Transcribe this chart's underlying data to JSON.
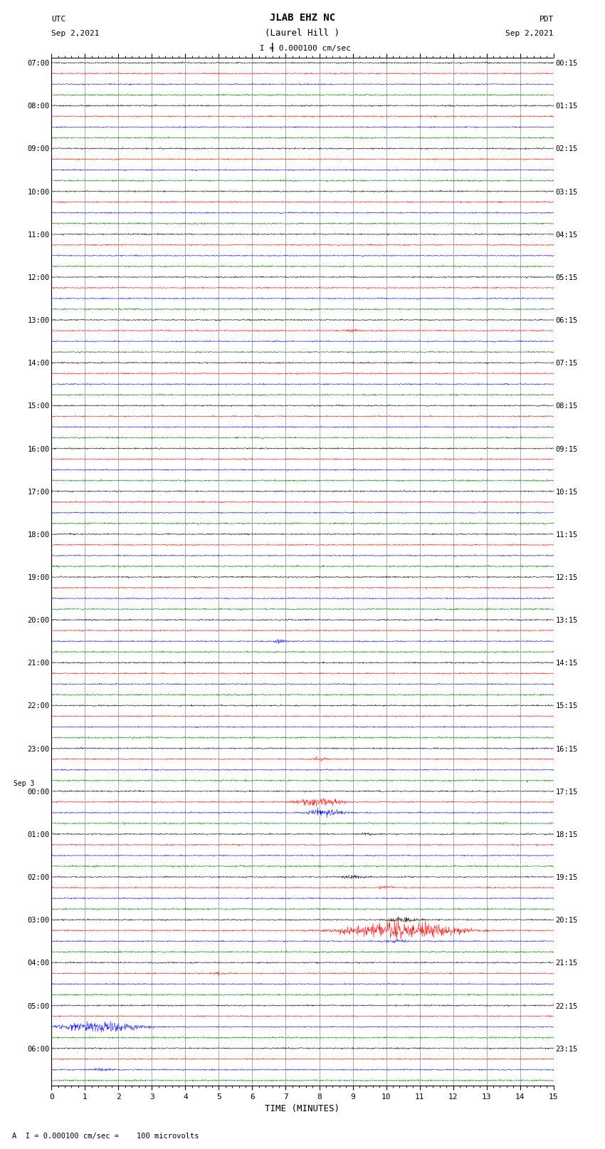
{
  "title_line1": "JLAB EHZ NC",
  "title_line2": "(Laurel Hill )",
  "scale_text": " I = 0.000100 cm/sec",
  "bottom_text": "A  I = 0.000100 cm/sec =    100 microvolts",
  "xlabel": "TIME (MINUTES)",
  "left_header_line1": "UTC",
  "left_header_line2": "Sep 2,2021",
  "right_header_line1": "PDT",
  "right_header_line2": "Sep 2,2021",
  "utc_labels": [
    "07:00",
    "08:00",
    "09:00",
    "10:00",
    "11:00",
    "12:00",
    "13:00",
    "14:00",
    "15:00",
    "16:00",
    "17:00",
    "18:00",
    "19:00",
    "20:00",
    "21:00",
    "22:00",
    "23:00",
    "Sep 3\n00:00",
    "01:00",
    "02:00",
    "03:00",
    "04:00",
    "05:00",
    "06:00"
  ],
  "pdt_labels": [
    "00:15",
    "01:15",
    "02:15",
    "03:15",
    "04:15",
    "05:15",
    "06:15",
    "07:15",
    "08:15",
    "09:15",
    "10:15",
    "11:15",
    "12:15",
    "13:15",
    "14:15",
    "15:15",
    "16:15",
    "17:15",
    "18:15",
    "19:15",
    "20:15",
    "21:15",
    "22:15",
    "23:15"
  ],
  "n_rows": 24,
  "traces_per_row": 4,
  "trace_colors": [
    "black",
    "red",
    "blue",
    "green"
  ],
  "bg_color": "white",
  "grid_color": "#888888",
  "xmin": 0,
  "xmax": 15,
  "xticks": [
    0,
    1,
    2,
    3,
    4,
    5,
    6,
    7,
    8,
    9,
    10,
    11,
    12,
    13,
    14,
    15
  ],
  "noise_scale": 0.032,
  "fig_width": 8.5,
  "fig_height": 16.13,
  "dpi": 100
}
